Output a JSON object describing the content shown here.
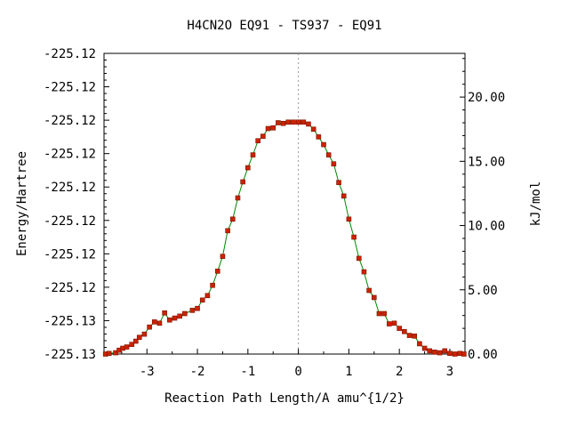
{
  "chart_data": {
    "type": "line",
    "title": "H4CN2O   EQ91 - TS937 - EQ91",
    "xlabel": "Reaction Path Length/A amu^{1/2}",
    "ylabel_left": "Energy/Hartree",
    "ylabel_right": "kJ/mol",
    "xlim": [
      -3.85,
      3.3
    ],
    "ylim_kj": [
      0.0,
      23.4
    ],
    "x_ticks": [
      -3,
      -2,
      -1,
      0,
      1,
      2,
      3
    ],
    "x_tick_labels": [
      "-3",
      "-2",
      "-1",
      "0",
      "1",
      "2",
      "3"
    ],
    "left_ticks_kj": [
      0.0,
      2.6,
      5.2,
      7.8,
      10.4,
      13.0,
      15.6,
      18.2,
      20.8,
      23.4
    ],
    "left_tick_labels": [
      "-225.13",
      "-225.13",
      "-225.12",
      "-225.12",
      "-225.12",
      "-225.12",
      "-225.12",
      "-225.12",
      "-225.12",
      "-225.12"
    ],
    "right_ticks_kj": [
      0.0,
      5.0,
      10.0,
      15.0,
      20.0
    ],
    "right_tick_labels": [
      "0.00",
      "5.00",
      "10.00",
      "15.00",
      "20.00"
    ],
    "ts_marker_x": 0.0,
    "series": [
      {
        "color": "#008800",
        "marker_color": "#cc2200",
        "x": [
          -3.82,
          -3.75,
          -3.62,
          -3.55,
          -3.48,
          -3.4,
          -3.3,
          -3.22,
          -3.15,
          -3.05,
          -2.95,
          -2.85,
          -2.75,
          -2.65,
          -2.55,
          -2.45,
          -2.35,
          -2.25,
          -2.1,
          -2.0,
          -1.9,
          -1.8,
          -1.7,
          -1.6,
          -1.5,
          -1.4,
          -1.3,
          -1.2,
          -1.1,
          -1.0,
          -0.9,
          -0.8,
          -0.7,
          -0.6,
          -0.5,
          -0.4,
          -0.3,
          -0.2,
          -0.1,
          0.0,
          0.1,
          0.2,
          0.3,
          0.4,
          0.5,
          0.6,
          0.7,
          0.8,
          0.9,
          1.0,
          1.1,
          1.2,
          1.3,
          1.4,
          1.5,
          1.6,
          1.7,
          1.8,
          1.9,
          2.0,
          2.1,
          2.2,
          2.3,
          2.4,
          2.5,
          2.6,
          2.7,
          2.8,
          2.9,
          3.0,
          3.1,
          3.2,
          3.28
        ],
        "y": [
          0.0,
          0.05,
          0.1,
          0.3,
          0.45,
          0.55,
          0.75,
          1.0,
          1.3,
          1.55,
          2.1,
          2.5,
          2.4,
          3.2,
          2.65,
          2.8,
          2.95,
          3.15,
          3.4,
          3.55,
          4.2,
          4.55,
          5.35,
          6.45,
          7.6,
          9.6,
          10.5,
          12.15,
          13.4,
          14.5,
          15.5,
          16.6,
          16.95,
          17.55,
          17.6,
          18.0,
          17.95,
          18.05,
          18.05,
          18.05,
          18.05,
          17.9,
          17.5,
          16.9,
          16.3,
          15.5,
          14.8,
          13.35,
          12.3,
          10.5,
          9.1,
          7.45,
          6.4,
          4.95,
          4.4,
          3.15,
          3.15,
          2.35,
          2.4,
          2.0,
          1.75,
          1.45,
          1.4,
          0.8,
          0.45,
          0.25,
          0.15,
          0.1,
          0.25,
          0.05,
          0.0,
          0.05,
          0.0
        ]
      }
    ]
  }
}
